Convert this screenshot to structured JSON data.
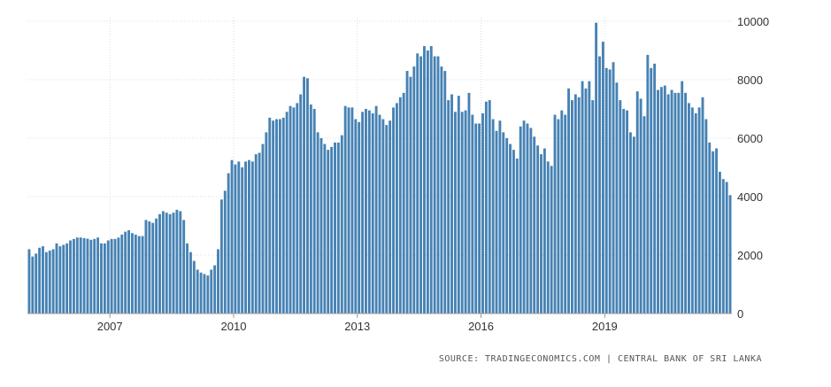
{
  "chart_data": {
    "type": "bar",
    "start": "2005-01",
    "values": [
      2200,
      1950,
      2050,
      2250,
      2300,
      2100,
      2150,
      2200,
      2400,
      2300,
      2350,
      2400,
      2500,
      2550,
      2600,
      2600,
      2580,
      2560,
      2520,
      2550,
      2600,
      2400,
      2400,
      2500,
      2550,
      2550,
      2600,
      2700,
      2800,
      2850,
      2750,
      2700,
      2650,
      2650,
      3200,
      3150,
      3100,
      3250,
      3400,
      3500,
      3450,
      3400,
      3450,
      3550,
      3500,
      3200,
      2400,
      2100,
      1800,
      1500,
      1400,
      1350,
      1300,
      1500,
      1650,
      2200,
      3900,
      4200,
      4800,
      5250,
      5100,
      5200,
      5000,
      5200,
      5250,
      5200,
      5450,
      5500,
      5800,
      6200,
      6700,
      6600,
      6650,
      6650,
      6700,
      6900,
      7100,
      7050,
      7200,
      7500,
      8100,
      8050,
      7150,
      7000,
      6200,
      6000,
      5800,
      5600,
      5700,
      5850,
      5850,
      6100,
      7100,
      7050,
      7050,
      6650,
      6550,
      6900,
      7000,
      6950,
      6850,
      7100,
      6800,
      6650,
      6450,
      6600,
      7050,
      7200,
      7400,
      7550,
      8300,
      8100,
      8450,
      8900,
      8800,
      9150,
      9000,
      9150,
      8800,
      8800,
      8450,
      8300,
      7300,
      7500,
      6900,
      7450,
      6900,
      6950,
      7550,
      6800,
      6500,
      6500,
      6850,
      7250,
      7300,
      6650,
      6250,
      6600,
      6200,
      6000,
      5800,
      5600,
      5300,
      6400,
      6600,
      6500,
      6350,
      6050,
      5750,
      5450,
      5650,
      5200,
      5050,
      6800,
      6650,
      6950,
      6800,
      7700,
      7300,
      7500,
      7400,
      7950,
      7700,
      7950,
      7300,
      9950,
      8800,
      9300,
      8400,
      8350,
      8600,
      7900,
      7300,
      7000,
      6950,
      6200,
      6050,
      7600,
      7350,
      6750,
      8850,
      8400,
      8550,
      7650,
      7750,
      7800,
      7500,
      7650,
      7550,
      7550,
      7950,
      7550,
      7200,
      7050,
      6850,
      7050,
      7400,
      6650,
      5850,
      5550,
      5650,
      4850,
      4600,
      4500,
      4050
    ],
    "x_ticks": [
      "2007",
      "2010",
      "2013",
      "2016",
      "2019"
    ],
    "x_tick_index": [
      24,
      60,
      96,
      132,
      168
    ],
    "y_ticks": [
      "0",
      "2000",
      "4000",
      "6000",
      "8000",
      "10000"
    ],
    "ylim": [
      0,
      10000
    ],
    "grid": true,
    "bar_color": "#4682b4",
    "source": "SOURCE: TRADINGECONOMICS.COM | CENTRAL BANK OF SRI LANKA"
  }
}
